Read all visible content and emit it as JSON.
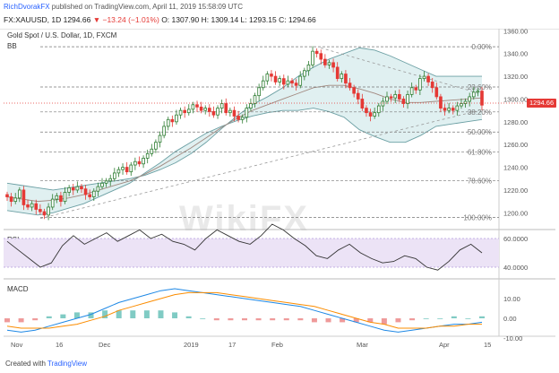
{
  "header": {
    "author": "RichDvorakFX",
    "published_text": " published on TradingView.com, April 11, 2019 15:58:09 UTC",
    "symbol_text": "FX:XAUUSD, 1D  1294.66",
    "change_text": "▼ −13.24 (−1.01%)",
    "ohlc_text": "O: 1307.90  H: 1309.14  L: 1293.15  C: 1294.66"
  },
  "price_panel": {
    "title": "Gold Spot / U.S. Dollar, 1D, FXCM",
    "indicator": "BB",
    "price_tag": "1294.66",
    "watermark": "WikiFX",
    "y_ticks": [
      "1360.00",
      "1340.00",
      "1320.00",
      "1300.00",
      "1280.00",
      "1260.00",
      "1240.00",
      "1220.00",
      "1200.00"
    ],
    "fib_levels": [
      "0.00%",
      "23.60%",
      "38.20%",
      "50.00%",
      "61.80%",
      "78.60%",
      "100.00%"
    ]
  },
  "rsi_panel": {
    "label": "RSI",
    "y_ticks": [
      "60.0000",
      "40.0000"
    ]
  },
  "macd_panel": {
    "label": "MACD",
    "y_ticks": [
      "10.00",
      "0.00",
      "-10.00"
    ]
  },
  "time_axis": [
    "Nov",
    "16",
    "Dec",
    "2019",
    "17",
    "Feb",
    "Mar",
    "Apr",
    "15"
  ],
  "footer": {
    "created_with": "Created with ",
    "brand": "TradingView"
  },
  "colors": {
    "up": "#2e7d32",
    "down": "#e53935",
    "bb_fill": "#cfe8ea",
    "bb_line": "#6b9fa3",
    "rsi_band": "#e9e0f5",
    "macd_line": "#1e88e5",
    "signal_line": "#fb8c00"
  },
  "chart_data": {
    "type": "candlestick",
    "symbol": "FX:XAUUSD",
    "x_range": [
      "2018-11-01",
      "2019-04-11"
    ],
    "ylim": [
      1190,
      1365
    ],
    "last_price": 1294.66,
    "closes": [
      1214,
      1210,
      1213,
      1220,
      1207,
      1205,
      1208,
      1203,
      1201,
      1198,
      1205,
      1212,
      1215,
      1210,
      1218,
      1222,
      1220,
      1223,
      1221,
      1216,
      1214,
      1219,
      1223,
      1226,
      1228,
      1230,
      1235,
      1238,
      1240,
      1236,
      1242,
      1245,
      1243,
      1248,
      1252,
      1256,
      1262,
      1268,
      1276,
      1282,
      1280,
      1286,
      1290,
      1288,
      1291,
      1295,
      1293,
      1290,
      1292,
      1289,
      1286,
      1292,
      1296,
      1288,
      1290,
      1285,
      1282,
      1284,
      1292,
      1296,
      1303,
      1310,
      1316,
      1322,
      1320,
      1315,
      1318,
      1313,
      1316,
      1314,
      1312,
      1320,
      1325,
      1330,
      1342,
      1340,
      1335,
      1330,
      1332,
      1328,
      1318,
      1322,
      1314,
      1310,
      1305,
      1300,
      1292,
      1288,
      1285,
      1288,
      1294,
      1298,
      1302,
      1301,
      1304,
      1300,
      1296,
      1304,
      1310,
      1308,
      1318,
      1320,
      1315,
      1310,
      1302,
      1292,
      1290,
      1292,
      1290,
      1294,
      1296,
      1298,
      1302,
      1306,
      1307,
      1294.66
    ],
    "bb_upper": [
      1226,
      1224,
      1222,
      1220,
      1222,
      1224,
      1226,
      1228,
      1230,
      1233,
      1238,
      1244,
      1252,
      1262,
      1274,
      1285,
      1295,
      1302,
      1310,
      1320,
      1328,
      1335,
      1340,
      1345,
      1343,
      1338,
      1332,
      1326,
      1320,
      1320,
      1320,
      1320
    ],
    "bb_middle": [
      1214,
      1212,
      1210,
      1211,
      1213,
      1216,
      1220,
      1224,
      1228,
      1234,
      1241,
      1249,
      1257,
      1266,
      1275,
      1283,
      1290,
      1295,
      1300,
      1305,
      1310,
      1312,
      1312,
      1309,
      1305,
      1300,
      1297,
      1297,
      1298,
      1299,
      1300,
      1301
    ],
    "bb_lower": [
      1202,
      1200,
      1198,
      1200,
      1204,
      1208,
      1214,
      1220,
      1226,
      1235,
      1244,
      1254,
      1262,
      1270,
      1276,
      1281,
      1285,
      1288,
      1290,
      1290,
      1292,
      1289,
      1284,
      1273,
      1267,
      1262,
      1262,
      1268,
      1276,
      1278,
      1280,
      1282
    ],
    "rsi": [
      58,
      52,
      46,
      40,
      43,
      55,
      62,
      56,
      60,
      64,
      58,
      62,
      66,
      60,
      63,
      58,
      56,
      52,
      60,
      66,
      62,
      58,
      56,
      62,
      70,
      66,
      60,
      55,
      48,
      46,
      52,
      56,
      50,
      46,
      43,
      44,
      48,
      46,
      40,
      38,
      44,
      52,
      56,
      50
    ],
    "macd": [
      -6,
      -7,
      -6,
      -4,
      -2,
      0,
      2,
      5,
      8,
      10,
      12,
      14,
      15,
      14,
      13,
      12,
      11,
      10,
      9,
      8,
      7,
      6,
      4,
      2,
      0,
      -2,
      -4,
      -6,
      -7,
      -6,
      -5,
      -4,
      -3,
      -3,
      -2
    ],
    "signal": [
      -4,
      -5,
      -5,
      -5,
      -4,
      -3,
      -1,
      1,
      4,
      6,
      8,
      10,
      12,
      13,
      13,
      13,
      12,
      11,
      10,
      9,
      8,
      7,
      6,
      4,
      2,
      0,
      -2,
      -3,
      -5,
      -5,
      -5,
      -4,
      -4,
      -3,
      -3
    ]
  }
}
